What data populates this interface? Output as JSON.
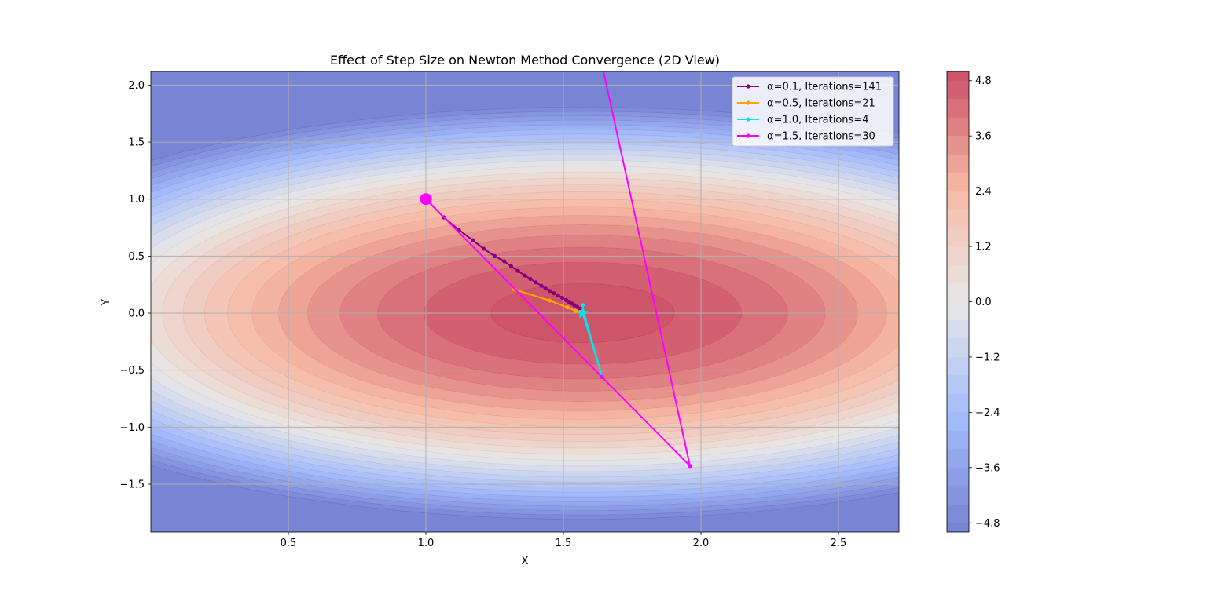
{
  "chart_data": {
    "type": "contour",
    "title": "Effect of Step Size on Newton Method Convergence (2D View)",
    "xlabel": "X",
    "ylabel": "Y",
    "xlim": [
      0.0,
      2.72
    ],
    "ylim": [
      -1.92,
      2.12
    ],
    "xticks": [
      0.5,
      1.0,
      1.5,
      2.0,
      2.5
    ],
    "xtick_labels": [
      "0.5",
      "1.0",
      "1.5",
      "2.0",
      "2.5"
    ],
    "yticks": [
      -1.5,
      -1.0,
      -0.5,
      0.0,
      0.5,
      1.0,
      1.5,
      2.0
    ],
    "ytick_labels": [
      "−1.5",
      "−1.0",
      "−0.5",
      "0.0",
      "0.5",
      "1.0",
      "1.5",
      "2.0"
    ],
    "grid": true,
    "legend_position": "upper right",
    "surface": {
      "optimum": [
        1.57,
        0.0
      ],
      "peak_value": 5.0,
      "x_curvature": 1.8,
      "y_curvature": 3.0,
      "contour_levels": [
        -4.8,
        -4.4,
        -4.0,
        -3.6,
        -3.2,
        -2.8,
        -2.4,
        -2.0,
        -1.6,
        -1.2,
        -0.8,
        -0.4,
        0.0,
        0.4,
        0.8,
        1.2,
        1.6,
        2.0,
        2.4,
        2.8,
        3.2,
        3.6,
        4.0,
        4.4,
        4.8
      ]
    },
    "colorbar": {
      "range": [
        -5.0,
        5.0
      ],
      "ticks": [
        4.8,
        3.6,
        2.4,
        1.2,
        0.0,
        -1.2,
        -2.4,
        -3.6,
        -4.8
      ],
      "tick_labels": [
        "4.8",
        "3.6",
        "2.4",
        "1.2",
        "0.0",
        "−1.2",
        "−2.4",
        "−3.6",
        "−4.8"
      ],
      "colormap": "coolwarm",
      "alpha": 0.7
    },
    "start_point": [
      1.0,
      1.0
    ],
    "end_marker": [
      1.57,
      0.0
    ],
    "series": [
      {
        "name": "α=0.1, Iterations=141",
        "color": "#800080",
        "points": [
          [
            1.0,
            1.0
          ],
          [
            1.065,
            0.84
          ],
          [
            1.12,
            0.73
          ],
          [
            1.17,
            0.64
          ],
          [
            1.21,
            0.565
          ],
          [
            1.25,
            0.5
          ],
          [
            1.285,
            0.455
          ],
          [
            1.31,
            0.41
          ],
          [
            1.335,
            0.37
          ],
          [
            1.36,
            0.33
          ],
          [
            1.38,
            0.3
          ],
          [
            1.4,
            0.27
          ],
          [
            1.42,
            0.24
          ],
          [
            1.435,
            0.215
          ],
          [
            1.45,
            0.195
          ],
          [
            1.465,
            0.175
          ],
          [
            1.48,
            0.155
          ],
          [
            1.495,
            0.135
          ],
          [
            1.51,
            0.115
          ],
          [
            1.52,
            0.1
          ],
          [
            1.53,
            0.085
          ],
          [
            1.54,
            0.07
          ],
          [
            1.55,
            0.055
          ],
          [
            1.56,
            0.04
          ],
          [
            1.567,
            0.02
          ],
          [
            1.57,
            0.0
          ]
        ]
      },
      {
        "name": "α=0.5, Iterations=21",
        "color": "#ffa500",
        "points": [
          [
            1.32,
            0.21
          ],
          [
            1.45,
            0.11
          ],
          [
            1.515,
            0.05
          ],
          [
            1.545,
            0.02
          ],
          [
            1.56,
            0.01
          ],
          [
            1.57,
            0.0
          ]
        ]
      },
      {
        "name": "α=1.0, Iterations=4",
        "color": "#00e5ee",
        "points": [
          [
            1.57,
            0.07
          ],
          [
            1.575,
            0.0
          ],
          [
            1.64,
            -0.55
          ],
          [
            1.57,
            0.0
          ]
        ]
      },
      {
        "name": "α=1.5, Iterations=30",
        "color": "#ff00ff",
        "points": [
          [
            1.0,
            1.0
          ],
          [
            1.64,
            -0.56
          ],
          [
            1.96,
            -1.34
          ],
          [
            1.62,
            2.4
          ]
        ]
      }
    ]
  }
}
